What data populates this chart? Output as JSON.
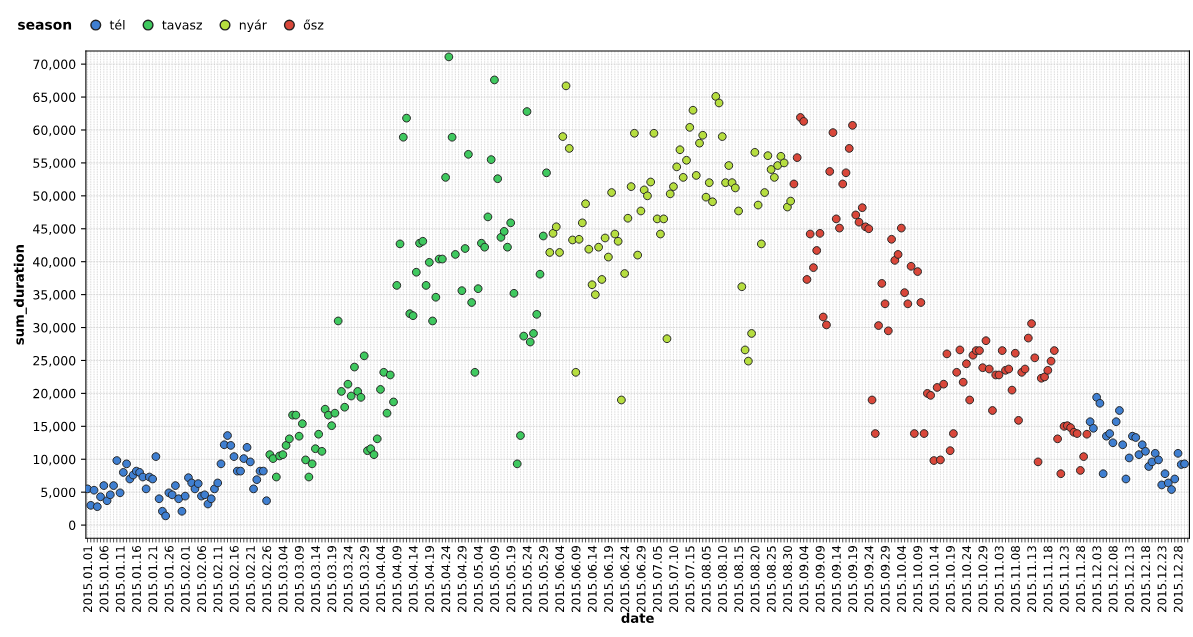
{
  "chart_data": {
    "type": "scatter",
    "xlabel": "date",
    "ylabel": "sum_duration",
    "legend_title": "season",
    "legend": "top left",
    "grid": true,
    "marker": "circle",
    "ylim": [
      -2000,
      72000
    ],
    "yticks": [
      0,
      {
        "value": 5000,
        "label": "5,000"
      },
      {
        "value": 10000,
        "label": "10,000"
      },
      {
        "value": 15000,
        "label": "15,000"
      },
      {
        "value": 20000,
        "label": "20,000"
      },
      {
        "value": 25000,
        "label": "25,000"
      },
      {
        "value": 30000,
        "label": "30,000"
      },
      {
        "value": 35000,
        "label": "35,000"
      },
      {
        "value": 40000,
        "label": "40,000"
      },
      {
        "value": 45000,
        "label": "45,000"
      },
      {
        "value": 50000,
        "label": "50,000"
      },
      {
        "value": 55000,
        "label": "55,000"
      },
      {
        "value": 60000,
        "label": "60,000"
      },
      {
        "value": 65000,
        "label": "65,000"
      },
      {
        "value": 70000,
        "label": "70,000"
      }
    ],
    "categories": [
      "2015.01.01",
      null,
      null,
      null,
      null,
      "2015.01.06",
      null,
      null,
      null,
      null,
      "2015.01.11",
      null,
      null,
      null,
      null,
      "2015.01.16",
      null,
      null,
      null,
      null,
      "2015.01.21",
      null,
      null,
      null,
      null,
      "2015.01.26",
      null,
      null,
      null,
      null,
      "2015.02.01",
      null,
      null,
      null,
      null,
      "2015.02.06",
      null,
      null,
      null,
      null,
      "2015.02.11",
      null,
      null,
      null,
      null,
      "2015.02.16",
      null,
      null,
      null,
      null,
      "2015.02.21",
      null,
      null,
      null,
      null,
      "2015.02.26",
      null,
      null,
      null,
      null,
      "2015.03.04",
      null,
      null,
      null,
      null,
      "2015.03.09",
      null,
      null,
      null,
      null,
      "2015.03.14",
      null,
      null,
      null,
      null,
      "2015.03.19",
      null,
      null,
      null,
      null,
      "2015.03.24",
      null,
      null,
      null,
      null,
      "2015.03.29",
      null,
      null,
      null,
      null,
      "2015.04.04",
      null,
      null,
      null,
      null,
      "2015.04.09",
      null,
      null,
      null,
      null,
      "2015.04.14",
      null,
      null,
      null,
      null,
      "2015.04.19",
      null,
      null,
      null,
      null,
      "2015.04.24",
      null,
      null,
      null,
      null,
      "2015.04.29",
      null,
      null,
      null,
      null,
      "2015.05.04",
      null,
      null,
      null,
      null,
      "2015.05.09",
      null,
      null,
      null,
      null,
      "2015.05.19",
      null,
      null,
      null,
      null,
      "2015.05.24",
      null,
      null,
      null,
      null,
      "2015.05.29",
      null,
      null,
      null,
      null,
      "2015.06.04",
      null,
      null,
      null,
      null,
      "2015.06.09",
      null,
      null,
      null,
      null,
      "2015.06.14",
      null,
      null,
      null,
      null,
      "2015.06.19",
      null,
      null,
      null,
      null,
      "2015.06.24",
      null,
      null,
      null,
      null,
      "2015.06.29",
      null,
      null,
      null,
      null,
      "2015.07.05",
      null,
      null,
      null,
      null,
      "2015.07.10",
      null,
      null,
      null,
      null,
      "2015.07.15",
      null,
      null,
      null,
      null,
      "2015.08.05",
      null,
      null,
      null,
      null,
      "2015.08.10",
      null,
      null,
      null,
      null,
      "2015.08.15",
      null,
      null,
      null,
      null,
      "2015.08.20",
      null,
      null,
      null,
      null,
      "2015.08.25",
      null,
      null,
      null,
      null,
      "2015.08.30",
      null,
      null,
      null,
      null,
      "2015.09.04",
      null,
      null,
      null,
      null,
      "2015.09.09",
      null,
      null,
      null,
      null,
      "2015.09.14",
      null,
      null,
      null,
      null,
      "2015.09.19",
      null,
      null,
      null,
      null,
      "2015.09.24",
      null,
      null,
      null,
      null,
      "2015.09.29",
      null,
      null,
      null,
      null,
      "2015.10.04",
      null,
      null,
      null,
      null,
      "2015.10.09",
      null,
      null,
      null,
      null,
      "2015.10.14",
      null,
      null,
      null,
      null,
      "2015.10.19",
      null,
      null,
      null,
      null,
      "2015.10.24",
      null,
      null,
      null,
      null,
      "2015.10.29",
      null,
      null,
      null,
      null,
      "2015.11.03",
      null,
      null,
      null,
      null,
      "2015.11.08",
      null,
      null,
      null,
      null,
      "2015.11.13",
      null,
      null,
      null,
      null,
      "2015.11.18",
      null,
      null,
      null,
      null,
      "2015.11.23",
      null,
      null,
      null,
      null,
      "2015.11.28",
      null,
      null,
      null,
      null,
      "2015.12.03",
      null,
      null,
      null,
      null,
      "2015.12.08",
      null,
      null,
      null,
      null,
      "2015.12.13",
      null,
      null,
      null,
      null,
      "2015.12.18",
      null,
      null,
      null,
      null,
      "2015.12.23",
      null,
      null,
      null,
      null,
      "2015.12.28",
      null,
      null,
      null
    ],
    "series": [
      {
        "name": "tél",
        "color": "#3f7fd1",
        "values": [
          5500,
          3000,
          5300,
          2800,
          4300,
          6000,
          3700,
          4600,
          6000,
          9800,
          4900,
          8000,
          9300,
          7000,
          7600,
          8200,
          8000,
          7300,
          5500,
          7300,
          7000,
          10400,
          4000,
          2100,
          1400,
          4900,
          4600,
          6000,
          4000,
          2100,
          4400,
          7200,
          6400,
          5500,
          6300,
          4400,
          4600,
          3200,
          4000,
          5500,
          6400,
          9300,
          12200,
          13600,
          12100,
          10400,
          8200,
          8200,
          10100,
          11800,
          9600,
          5500,
          6900,
          8200,
          8200,
          3700,
          null,
          null,
          null,
          null,
          null,
          null,
          null,
          null,
          null,
          null,
          null,
          null,
          null,
          null,
          null,
          null,
          null,
          null,
          null,
          null,
          null,
          null,
          null,
          null,
          null,
          null,
          null,
          null,
          null,
          null,
          null,
          null,
          null,
          null,
          null,
          null,
          null,
          null,
          null,
          null,
          null,
          null,
          null,
          null,
          null,
          null,
          null,
          null,
          null,
          null,
          null,
          null,
          null,
          null,
          null,
          null,
          null,
          null,
          null,
          null,
          null,
          null,
          null,
          null,
          null,
          null,
          null,
          null,
          null,
          null,
          null,
          null,
          null,
          null,
          null,
          null,
          null,
          null,
          null,
          null,
          null,
          null,
          null,
          null,
          null,
          null,
          null,
          null,
          null,
          null,
          null,
          null,
          null,
          null,
          null,
          null,
          null,
          null,
          null,
          null,
          null,
          null,
          null,
          null,
          null,
          null,
          null,
          null,
          null,
          null,
          null,
          null,
          null,
          null,
          null,
          null,
          null,
          null,
          null,
          null,
          null,
          null,
          null,
          null,
          null,
          null,
          null,
          null,
          null,
          null,
          null,
          null,
          null,
          null,
          null,
          null,
          null,
          null,
          null,
          null,
          null,
          null,
          null,
          null,
          null,
          null,
          null,
          null,
          null,
          null,
          null,
          null,
          null,
          null,
          null,
          null,
          null,
          null,
          null,
          null,
          null,
          null,
          null,
          null,
          null,
          null,
          null,
          null,
          null,
          null,
          null,
          null,
          null,
          null,
          null,
          null,
          null,
          null,
          null,
          null,
          null,
          null,
          null,
          null,
          null,
          null,
          null,
          null,
          null,
          null,
          null,
          null,
          null,
          null,
          null,
          null,
          null,
          null,
          null,
          null,
          null,
          null,
          null,
          null,
          null,
          null,
          null,
          null,
          null,
          null,
          null,
          null,
          null,
          null,
          null,
          null,
          null,
          null,
          null,
          null,
          null,
          null,
          null,
          null,
          null,
          null,
          null,
          null,
          null,
          null,
          null,
          null,
          null,
          null,
          null,
          null,
          null,
          null,
          null,
          null,
          null,
          null,
          null,
          null,
          null,
          null,
          null,
          null,
          null,
          null,
          null,
          null,
          15700,
          14700,
          19400,
          18500,
          7800,
          13500,
          13900,
          12500,
          15700,
          17400,
          12200,
          7000,
          10200,
          13500,
          13300,
          10700,
          12200,
          11200,
          8900,
          9600,
          10900,
          9900,
          6100,
          7800,
          6400,
          5400,
          7000,
          10900,
          9200,
          9300,
          null
        ]
      },
      {
        "name": "tavasz",
        "color": "#3fc95f",
        "values": [
          null,
          null,
          null,
          null,
          null,
          null,
          null,
          null,
          null,
          null,
          null,
          null,
          null,
          null,
          null,
          null,
          null,
          null,
          null,
          null,
          null,
          null,
          null,
          null,
          null,
          null,
          null,
          null,
          null,
          null,
          null,
          null,
          null,
          null,
          null,
          null,
          null,
          null,
          null,
          null,
          null,
          null,
          null,
          null,
          null,
          null,
          null,
          null,
          null,
          null,
          null,
          null,
          null,
          null,
          null,
          null,
          10700,
          10100,
          7300,
          10500,
          10700,
          12100,
          13100,
          16700,
          16700,
          13500,
          15400,
          9900,
          7300,
          9300,
          11600,
          13800,
          11200,
          17600,
          16700,
          15100,
          17000,
          31000,
          20300,
          17900,
          21400,
          19600,
          24000,
          20300,
          19400,
          25700,
          11300,
          11600,
          10700,
          13100,
          20600,
          23200,
          17000,
          22800,
          18700,
          36400,
          42700,
          58900,
          61800,
          32100,
          31800,
          38400,
          42800,
          43100,
          36400,
          39900,
          31000,
          34600,
          40400,
          40400,
          52800,
          71100,
          58900,
          41100,
          null,
          35600,
          42000,
          56300,
          33800,
          23200,
          35900,
          42800,
          42200,
          46800,
          55500,
          67600,
          52600,
          43700,
          44600,
          42200,
          45900,
          35200,
          9300,
          13600,
          28700,
          62800,
          27800,
          29100,
          32000,
          38100,
          43900,
          53500,
          null,
          null,
          null,
          null,
          null,
          null,
          null,
          null,
          null,
          null,
          null,
          null,
          null,
          null,
          null,
          null,
          null,
          null,
          null,
          null,
          null,
          null,
          null,
          null,
          null,
          null,
          null,
          null,
          null,
          null,
          null,
          null,
          null,
          null,
          null,
          null,
          null,
          null,
          null,
          null,
          null,
          null,
          null,
          null,
          null,
          null,
          null,
          null,
          null,
          null,
          null,
          null,
          null,
          null,
          null,
          null,
          null,
          null,
          null,
          null,
          null,
          null,
          null,
          null,
          null,
          null,
          null,
          null,
          null,
          null,
          null,
          null,
          null,
          null,
          null,
          null,
          null,
          null,
          null,
          null,
          null,
          null,
          null,
          null,
          null,
          null,
          null,
          null,
          null,
          null,
          null,
          null,
          null,
          null,
          null,
          null,
          null,
          null,
          null,
          null,
          null,
          null,
          null,
          null,
          null,
          null,
          null,
          null,
          null,
          null,
          null,
          null,
          null,
          null,
          null,
          null,
          null,
          null,
          null,
          null,
          null,
          null,
          null,
          null,
          null,
          null,
          null,
          null,
          null,
          null,
          null,
          null,
          null,
          null,
          null,
          null,
          null,
          null,
          null,
          null,
          null,
          null,
          null,
          null,
          null,
          null,
          null,
          null,
          null,
          null,
          null,
          null,
          null,
          null,
          null,
          null,
          null,
          null,
          null,
          null,
          null,
          null,
          null,
          null,
          null,
          null,
          null,
          null,
          null,
          null,
          null,
          null,
          null,
          null,
          null,
          null,
          null,
          null,
          null,
          null,
          null,
          null,
          null,
          null,
          null,
          null,
          null,
          null,
          null,
          null,
          null,
          null,
          null,
          null,
          null,
          null,
          null
        ]
      },
      {
        "name": "nyár",
        "color": "#b6de3f",
        "values": [
          null,
          null,
          null,
          null,
          null,
          null,
          null,
          null,
          null,
          null,
          null,
          null,
          null,
          null,
          null,
          null,
          null,
          null,
          null,
          null,
          null,
          null,
          null,
          null,
          null,
          null,
          null,
          null,
          null,
          null,
          null,
          null,
          null,
          null,
          null,
          null,
          null,
          null,
          null,
          null,
          null,
          null,
          null,
          null,
          null,
          null,
          null,
          null,
          null,
          null,
          null,
          null,
          null,
          null,
          null,
          null,
          null,
          null,
          null,
          null,
          null,
          null,
          null,
          null,
          null,
          null,
          null,
          null,
          null,
          null,
          null,
          null,
          null,
          null,
          null,
          null,
          null,
          null,
          null,
          null,
          null,
          null,
          null,
          null,
          null,
          null,
          null,
          null,
          null,
          null,
          null,
          null,
          null,
          null,
          null,
          null,
          null,
          null,
          null,
          null,
          null,
          null,
          null,
          null,
          null,
          null,
          null,
          null,
          null,
          null,
          null,
          null,
          null,
          null,
          null,
          null,
          null,
          null,
          null,
          null,
          null,
          null,
          null,
          null,
          null,
          null,
          null,
          null,
          null,
          null,
          null,
          null,
          null,
          null,
          null,
          null,
          null,
          null,
          null,
          null,
          null,
          null,
          41400,
          44300,
          45300,
          41400,
          59000,
          66700,
          57200,
          43300,
          23200,
          43400,
          45900,
          48800,
          41900,
          36500,
          35000,
          42200,
          37300,
          43600,
          40700,
          50500,
          44200,
          43100,
          19000,
          38200,
          46600,
          51400,
          59500,
          41000,
          47700,
          50900,
          50000,
          52100,
          59500,
          46500,
          44200,
          46500,
          28300,
          50300,
          51400,
          54400,
          57000,
          52800,
          55400,
          60400,
          63000,
          53100,
          58000,
          59200,
          49800,
          52000,
          49100,
          65100,
          64100,
          59000,
          52000,
          54600,
          52000,
          51200,
          47700,
          36200,
          26600,
          24900,
          29100,
          56600,
          48600,
          42700,
          50500,
          56100,
          54000,
          52800,
          54600,
          56000,
          55000,
          48300,
          49200,
          null,
          null,
          null,
          null,
          null,
          null,
          null,
          null,
          null,
          null,
          null,
          null,
          null,
          null,
          null,
          null,
          null,
          null,
          null,
          null,
          null,
          null,
          null,
          null,
          null,
          null,
          null,
          null,
          null,
          null,
          null,
          null,
          null,
          null,
          null,
          null,
          null,
          null,
          null,
          null,
          null,
          null,
          null,
          null,
          null,
          null,
          null,
          null,
          null,
          null,
          null,
          null,
          null,
          null,
          null,
          null,
          null,
          null,
          null,
          null,
          null,
          null,
          null,
          null,
          null,
          null,
          null,
          null,
          null,
          null,
          null,
          null,
          null,
          null,
          null,
          null,
          null,
          null,
          null,
          null,
          null,
          null,
          null,
          null,
          null,
          null,
          null,
          null,
          null,
          null,
          null,
          null,
          null,
          null,
          null,
          null,
          null,
          null,
          null,
          null,
          null,
          null,
          null,
          null,
          null,
          null,
          null,
          null,
          null,
          null,
          null,
          null,
          null,
          null,
          null,
          null,
          null,
          null,
          null,
          null,
          null,
          null
        ]
      },
      {
        "name": "ősz",
        "color": "#d9473a",
        "values": [
          null,
          null,
          null,
          null,
          null,
          null,
          null,
          null,
          null,
          null,
          null,
          null,
          null,
          null,
          null,
          null,
          null,
          null,
          null,
          null,
          null,
          null,
          null,
          null,
          null,
          null,
          null,
          null,
          null,
          null,
          null,
          null,
          null,
          null,
          null,
          null,
          null,
          null,
          null,
          null,
          null,
          null,
          null,
          null,
          null,
          null,
          null,
          null,
          null,
          null,
          null,
          null,
          null,
          null,
          null,
          null,
          null,
          null,
          null,
          null,
          null,
          null,
          null,
          null,
          null,
          null,
          null,
          null,
          null,
          null,
          null,
          null,
          null,
          null,
          null,
          null,
          null,
          null,
          null,
          null,
          null,
          null,
          null,
          null,
          null,
          null,
          null,
          null,
          null,
          null,
          null,
          null,
          null,
          null,
          null,
          null,
          null,
          null,
          null,
          null,
          null,
          null,
          null,
          null,
          null,
          null,
          null,
          null,
          null,
          null,
          null,
          null,
          null,
          null,
          null,
          null,
          null,
          null,
          null,
          null,
          null,
          null,
          null,
          null,
          null,
          null,
          null,
          null,
          null,
          null,
          null,
          null,
          null,
          null,
          null,
          null,
          null,
          null,
          null,
          null,
          null,
          null,
          null,
          null,
          null,
          null,
          null,
          null,
          null,
          null,
          null,
          null,
          null,
          null,
          null,
          null,
          null,
          null,
          null,
          null,
          null,
          null,
          null,
          null,
          null,
          null,
          null,
          null,
          null,
          null,
          null,
          null,
          null,
          null,
          null,
          null,
          null,
          null,
          null,
          null,
          null,
          null,
          null,
          null,
          null,
          null,
          null,
          null,
          null,
          null,
          null,
          null,
          null,
          null,
          null,
          null,
          null,
          null,
          null,
          null,
          null,
          null,
          null,
          null,
          null,
          null,
          null,
          null,
          null,
          null,
          null,
          null,
          null,
          null,
          null,
          null,
          null,
          51800,
          55800,
          61900,
          61300,
          37300,
          44200,
          39100,
          41700,
          44300,
          31600,
          30400,
          53700,
          59600,
          46500,
          45100,
          51800,
          53500,
          57200,
          60700,
          47100,
          46000,
          48200,
          45300,
          45000,
          19000,
          13900,
          30300,
          36700,
          33600,
          29500,
          43400,
          40200,
          41100,
          45100,
          35300,
          33600,
          39300,
          13900,
          38500,
          33800,
          13900,
          20000,
          19700,
          9800,
          20900,
          9900,
          21400,
          26000,
          11300,
          13900,
          23200,
          26600,
          21700,
          24500,
          19000,
          25800,
          26500,
          26500,
          23900,
          28000,
          23700,
          17400,
          22800,
          22800,
          26500,
          23500,
          23700,
          20500,
          26100,
          15900,
          23200,
          23700,
          28400,
          30600,
          25400,
          9600,
          22300,
          22500,
          23500,
          24900,
          26500,
          13100,
          7800,
          15000,
          15100,
          14800,
          14100,
          13900,
          8300,
          10400,
          13800,
          null,
          null,
          null,
          null,
          null,
          null,
          null,
          null,
          null,
          null,
          null,
          null,
          null,
          null,
          null,
          null,
          null,
          null,
          null,
          null,
          null,
          null,
          null,
          null,
          null,
          null,
          null,
          null,
          null,
          null,
          null
        ]
      }
    ]
  }
}
